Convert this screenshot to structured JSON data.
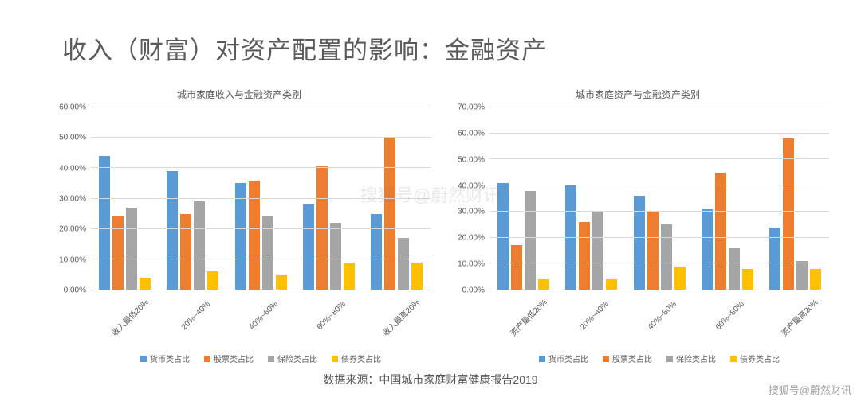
{
  "page_title": "收入（财富）对资产配置的影响：金融资产",
  "source_line": "数据来源：中国城市家庭财富健康报告2019",
  "watermark_center": "搜狐号@蔚然财讯",
  "watermark_bottom": "搜狐号@蔚然财讯",
  "series_colors": [
    "#5b9bd5",
    "#ed7d31",
    "#a5a5a5",
    "#ffc000"
  ],
  "legend_labels": [
    "货币类占比",
    "股票类占比",
    "保险类占比",
    "债券类占比"
  ],
  "left_chart": {
    "title": "城市家庭收入与金融资产类别",
    "y_max": 60,
    "y_step": 10,
    "y_format_suffix": ".00%",
    "categories": [
      "收入最低20%",
      "20%~40%",
      "40%~60%",
      "60%~80%",
      "收入最高20%"
    ],
    "data": [
      [
        44,
        24,
        27,
        4
      ],
      [
        39,
        25,
        29,
        6
      ],
      [
        35,
        36,
        24,
        5
      ],
      [
        28,
        41,
        22,
        9
      ],
      [
        25,
        50,
        17,
        9
      ]
    ],
    "grid_color": "#d9d9d9",
    "background_color": "#ffffff",
    "title_fontsize": 12,
    "label_fontsize": 10
  },
  "right_chart": {
    "title": "城市家庭资产与金融资产类别",
    "y_max": 70,
    "y_step": 10,
    "y_format_suffix": ".00%",
    "categories": [
      "资产最低20%",
      "20%~40%",
      "40%~60%",
      "60%~80%",
      "资产最高20%"
    ],
    "data": [
      [
        41,
        17,
        38,
        4
      ],
      [
        40,
        26,
        30,
        4
      ],
      [
        36,
        30,
        25,
        9
      ],
      [
        31,
        45,
        16,
        8
      ],
      [
        24,
        58,
        11,
        8
      ]
    ],
    "grid_color": "#d9d9d9",
    "background_color": "#ffffff",
    "title_fontsize": 12,
    "label_fontsize": 10
  }
}
